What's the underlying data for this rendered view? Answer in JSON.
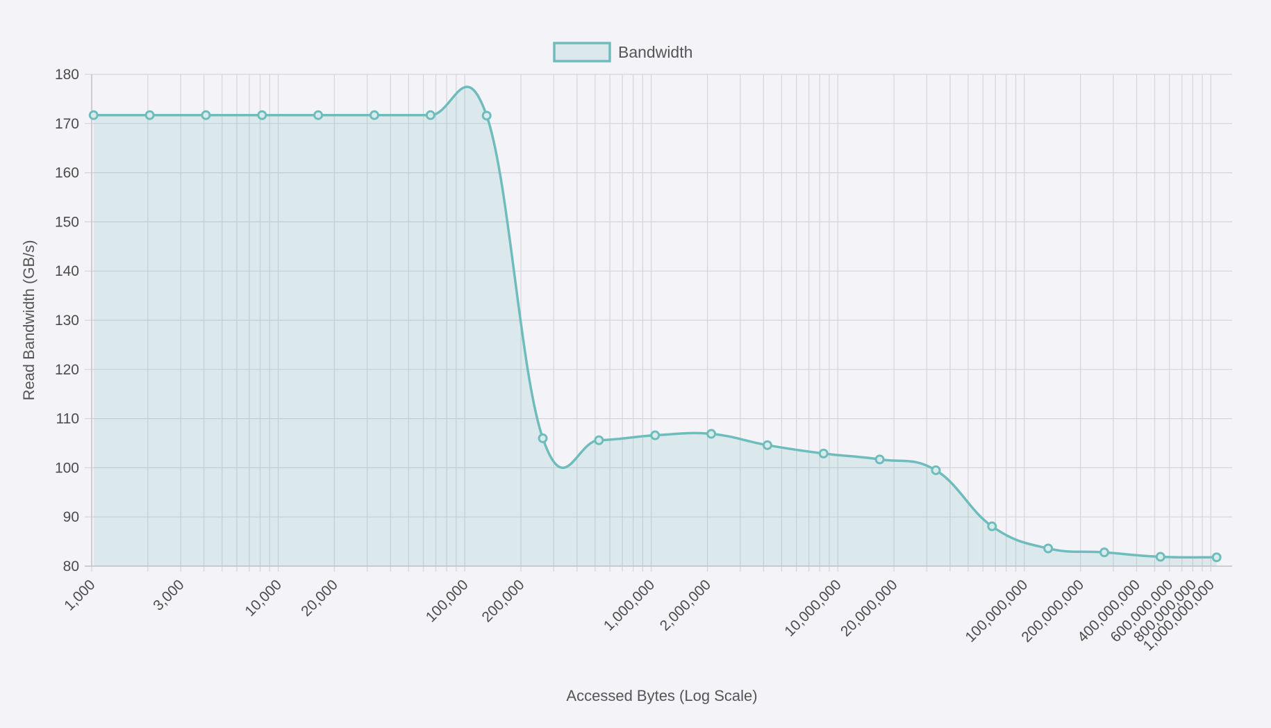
{
  "chart_data": {
    "type": "area",
    "title": "",
    "xlabel": "Accessed Bytes (Log Scale)",
    "ylabel": "Read Bandwidth (GB/s)",
    "x_scale": "log",
    "xlim": [
      1000,
      1300000000
    ],
    "ylim": [
      80,
      180
    ],
    "y_ticks": [
      80,
      90,
      100,
      110,
      120,
      130,
      140,
      150,
      160,
      170,
      180
    ],
    "x_tick_labels": [
      "1,000",
      "3,000",
      "10,000",
      "20,000",
      "100,000",
      "200,000",
      "1,000,000",
      "2,000,000",
      "10,000,000",
      "20,000,000",
      "100,000,000",
      "200,000,000",
      "400,000,000",
      "600,000,000",
      "800,000,000",
      "1,000,000,000"
    ],
    "grid": true,
    "legend_position": "top-center",
    "series": [
      {
        "name": "Bandwidth",
        "color": "#6fbcbc",
        "fill": "rgba(111,188,188,0.18)",
        "x": [
          1024,
          2048,
          4096,
          8192,
          16384,
          32768,
          65536,
          131072,
          262144,
          524288,
          1048576,
          2097152,
          4194304,
          8388608,
          16777216,
          33554432,
          67108864,
          134217728,
          268435456,
          536870912,
          1073741824
        ],
        "values": [
          171.7,
          171.7,
          171.7,
          171.7,
          171.7,
          171.7,
          171.7,
          171.6,
          106.0,
          105.6,
          106.6,
          106.9,
          104.6,
          102.9,
          101.7,
          99.5,
          88.1,
          83.6,
          82.8,
          81.9,
          81.8
        ]
      }
    ]
  }
}
